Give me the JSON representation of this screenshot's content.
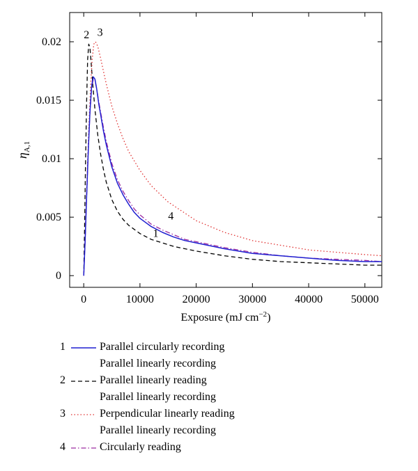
{
  "chart_data": {
    "type": "line",
    "title": "",
    "xlabel": "Exposure (mJ cm−2)",
    "ylabel": "ηA,1",
    "xlim": [
      -2500,
      53000
    ],
    "ylim": [
      -0.001,
      0.0225
    ],
    "x_ticks": [
      0,
      10000,
      20000,
      30000,
      40000,
      50000
    ],
    "x_tick_labels": [
      "0",
      "10000",
      "20000",
      "30000",
      "40000",
      "50000"
    ],
    "y_ticks": [
      0,
      0.005,
      0.01,
      0.015,
      0.02
    ],
    "y_tick_labels": [
      "0",
      "0.005",
      "0.01",
      "0.015",
      "0.02"
    ],
    "grid": false,
    "legend_position": "below",
    "series": [
      {
        "id": "1",
        "name": "Parallel circularly recording",
        "color": "#1f1fd0",
        "dash": "solid",
        "x": [
          0,
          250,
          500,
          800,
          1100,
          1400,
          1700,
          2000,
          2300,
          2700,
          3000,
          3500,
          4000,
          5000,
          6000,
          7000,
          8000,
          9000,
          10000,
          12000,
          14000,
          16000,
          18000,
          20000,
          25000,
          30000,
          35000,
          40000,
          45000,
          50000,
          53000
        ],
        "y": [
          0,
          0.003,
          0.0065,
          0.0105,
          0.014,
          0.0162,
          0.017,
          0.0168,
          0.016,
          0.0146,
          0.0138,
          0.0124,
          0.0112,
          0.0093,
          0.0079,
          0.0069,
          0.0061,
          0.0054,
          0.0049,
          0.0042,
          0.0037,
          0.0033,
          0.003,
          0.0028,
          0.0023,
          0.0019,
          0.0017,
          0.0015,
          0.0013,
          0.0012,
          0.0012
        ]
      },
      {
        "id": "2",
        "name": "Parallel linearly recording\nParallel linearly reading",
        "color": "#000000",
        "dash": "dashed",
        "x": [
          0,
          150,
          300,
          500,
          700,
          900,
          1100,
          1300,
          1600,
          2000,
          2500,
          3000,
          3500,
          4000,
          5000,
          6000,
          7000,
          8000,
          10000,
          12000,
          14000,
          16000,
          20000,
          25000,
          30000,
          35000,
          40000,
          45000,
          50000,
          53000
        ],
        "y": [
          0,
          0.004,
          0.009,
          0.0145,
          0.0185,
          0.0198,
          0.0195,
          0.0183,
          0.0164,
          0.0142,
          0.012,
          0.0104,
          0.0091,
          0.008,
          0.0065,
          0.0055,
          0.0048,
          0.0043,
          0.0036,
          0.0031,
          0.0028,
          0.0025,
          0.0021,
          0.0017,
          0.0014,
          0.0012,
          0.0011,
          0.001,
          0.0009,
          0.0009
        ]
      },
      {
        "id": "3",
        "name": "Parallel linearly recording\nPerpendicular linearly reading",
        "color": "#e03030",
        "dash": "dotted",
        "x": [
          0,
          300,
          600,
          900,
          1200,
          1500,
          1800,
          2100,
          2500,
          3000,
          3500,
          4000,
          5000,
          6000,
          7000,
          8000,
          10000,
          12000,
          15000,
          20000,
          25000,
          30000,
          35000,
          40000,
          45000,
          50000,
          53000
        ],
        "y": [
          0,
          0.004,
          0.0085,
          0.0125,
          0.016,
          0.0185,
          0.0198,
          0.02,
          0.0196,
          0.0186,
          0.0175,
          0.0164,
          0.0145,
          0.013,
          0.0117,
          0.0106,
          0.009,
          0.0077,
          0.0063,
          0.0047,
          0.0037,
          0.003,
          0.0026,
          0.0022,
          0.002,
          0.0018,
          0.0017
        ]
      },
      {
        "id": "4",
        "name": "Parallel linearly recording\nCircularly reading",
        "color": "#9c2aa0",
        "dash": "dashdot",
        "x": [
          0,
          250,
          500,
          800,
          1100,
          1400,
          1700,
          2000,
          2300,
          2700,
          3000,
          3500,
          4000,
          5000,
          6000,
          7000,
          8000,
          9000,
          10000,
          12000,
          14000,
          16000,
          18000,
          20000,
          25000,
          30000,
          35000,
          40000,
          45000,
          50000,
          53000
        ],
        "y": [
          0,
          0.003,
          0.0065,
          0.0105,
          0.0139,
          0.016,
          0.0168,
          0.0167,
          0.016,
          0.0148,
          0.014,
          0.0127,
          0.0115,
          0.0096,
          0.0082,
          0.0072,
          0.0064,
          0.0057,
          0.0052,
          0.0044,
          0.0039,
          0.0035,
          0.0031,
          0.0029,
          0.0024,
          0.002,
          0.0017,
          0.0015,
          0.0014,
          0.0013,
          0.0012
        ]
      }
    ],
    "curve_labels": [
      {
        "text": "1",
        "x": 12800,
        "y": 0.0033
      },
      {
        "text": "2",
        "x": 500,
        "y": 0.0203
      },
      {
        "text": "3",
        "x": 2900,
        "y": 0.0205
      },
      {
        "text": "4",
        "x": 15500,
        "y": 0.0048
      }
    ]
  },
  "legend": [
    {
      "number": "1",
      "series": 0,
      "lines": [
        "Parallel circularly recording"
      ]
    },
    {
      "number": "2",
      "series": 1,
      "lines": [
        "Parallel linearly recording",
        "Parallel linearly reading"
      ]
    },
    {
      "number": "3",
      "series": 2,
      "lines": [
        "Parallel linearly recording",
        "Perpendicular linearly reading"
      ]
    },
    {
      "number": "4",
      "series": 3,
      "lines": [
        "Parallel linearly recording",
        "Circularly reading"
      ]
    }
  ]
}
